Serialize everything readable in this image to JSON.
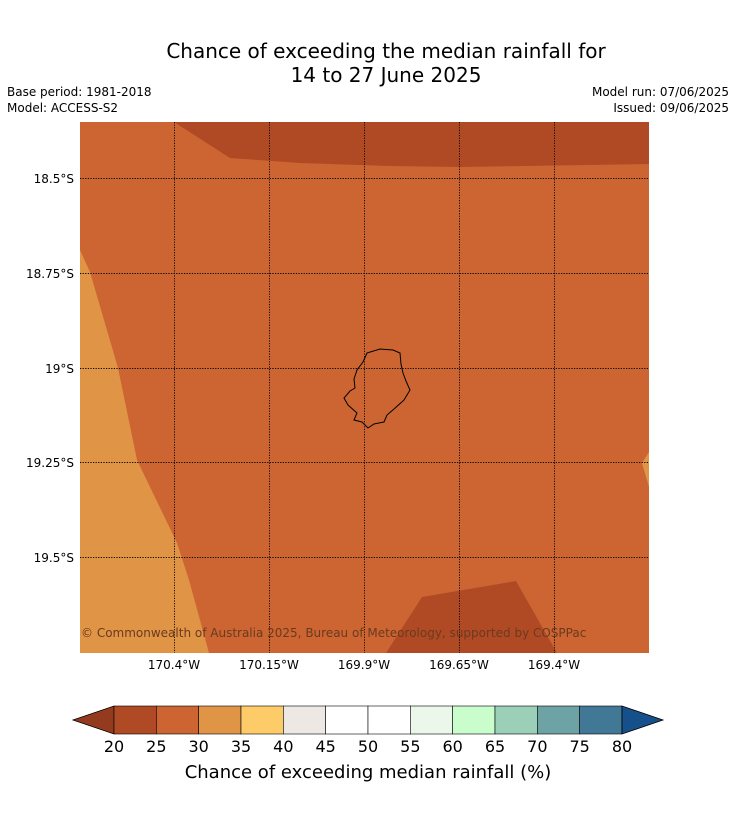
{
  "header": {
    "title_line1": "Chance of exceeding the median rainfall for",
    "title_line2": "14 to 27 June 2025",
    "base_period": "Base period: 1981-2018",
    "model": "Model: ACCESS-S2",
    "model_run": "Model run: 07/06/2025",
    "issued": "Issued: 09/06/2025"
  },
  "map": {
    "lat_labels": [
      "18.5°S",
      "18.75°S",
      "19°S",
      "19.25°S",
      "19.5°S"
    ],
    "lon_labels": [
      "170.4°W",
      "170.15°W",
      "169.9°W",
      "169.65°W",
      "169.4°W"
    ],
    "copyright": "© Commonwealth of Australia 2025, Bureau of Meteorology, supported by COSPPac",
    "colors": {
      "c20_25": "#b04a24",
      "c25_30": "#cc6532",
      "c30_35": "#e09446"
    }
  },
  "colorbar": {
    "ticks": [
      "20",
      "25",
      "30",
      "35",
      "40",
      "45",
      "50",
      "55",
      "60",
      "65",
      "70",
      "75",
      "80"
    ],
    "colors": [
      "#b04a24",
      "#cc6532",
      "#e09446",
      "#fecb69",
      "#ede8e4",
      "#ffffff",
      "#ffffff",
      "#ebf7ea",
      "#c9fdcb",
      "#9ccfb8",
      "#6da3a5",
      "#417896"
    ],
    "under_color": "#943b1f",
    "over_color": "#15508a",
    "label": "Chance of exceeding median rainfall (%)"
  }
}
